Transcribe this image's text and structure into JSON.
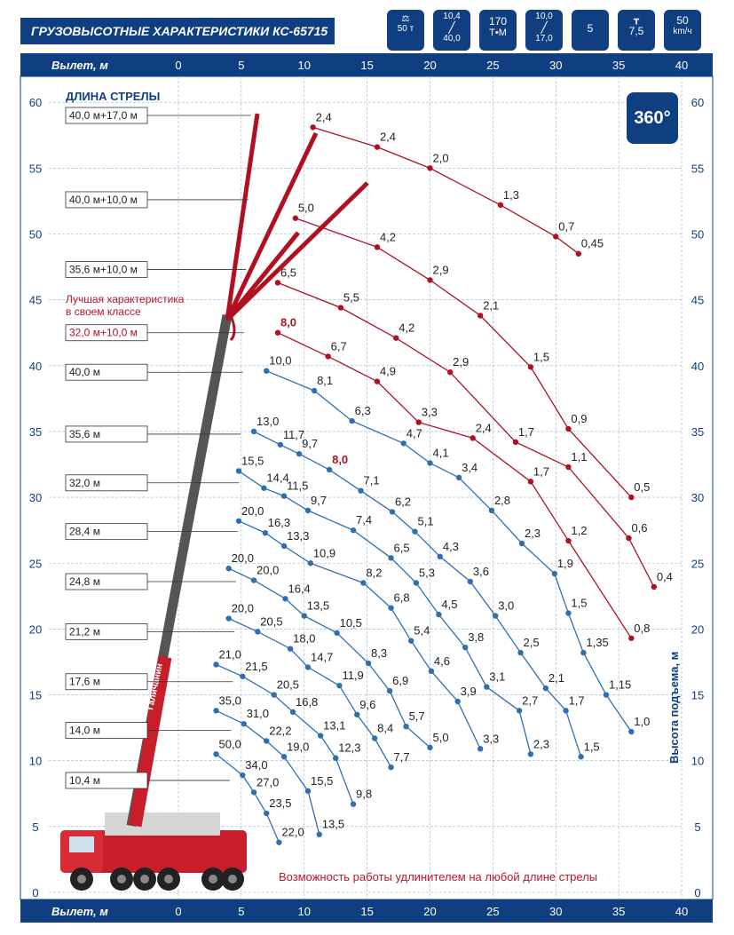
{
  "header": {
    "title": "ГРУЗОВЫСОТНЫЕ ХАРАКТЕРИСТИКИ КС-65715",
    "badges": [
      {
        "top": "",
        "bottom": "50 т",
        "icon": "weight-icon"
      },
      {
        "top": "10,4",
        "bottom": "40,0",
        "icon": "boom-icon"
      },
      {
        "top": "170",
        "bottom": "Т•М",
        "icon": "moment-icon"
      },
      {
        "top": "10,0",
        "bottom": "17,0",
        "icon": "jib-icon"
      },
      {
        "top": "",
        "bottom": "5",
        "icon": "sections-icon"
      },
      {
        "top": "",
        "bottom": "7,5",
        "icon": "outrigger-icon"
      },
      {
        "top": "50",
        "bottom": "km/ч",
        "icon": "speedometer-icon"
      }
    ]
  },
  "axis": {
    "top_label": "Вылет, м",
    "bottom_label": "Вылет, м",
    "y_label": "Высота подъема, м",
    "x_ticks": [
      "0",
      "5",
      "10",
      "15",
      "20",
      "25",
      "30",
      "35",
      "40"
    ],
    "y_ticks": [
      "0",
      "5",
      "10",
      "15",
      "20",
      "25",
      "30",
      "35",
      "40",
      "45",
      "50",
      "55",
      "60"
    ]
  },
  "boom": {
    "title": "ДЛИНА СТРЕЛЫ",
    "best_note": "Лучшая характеристика\nв своем классе",
    "rotation": "360°",
    "crane_brand": "Галичанин"
  },
  "footer_note": "Возможность работы удлинителем на любой длине стрелы",
  "colors": {
    "navy": "#0f3f80",
    "red": "#b01020",
    "blue_curve": "#2f6fb1",
    "grid": "#8fb4d9"
  },
  "chart_data": {
    "type": "line",
    "xlabel": "Вылет, м",
    "ylabel": "Высота подъема, м",
    "xlim": [
      0,
      40
    ],
    "ylim": [
      0,
      60
    ],
    "grid": true,
    "boom_length_labels": [
      {
        "label": "40,0 м+17,0 м",
        "y": 59,
        "highlight": false
      },
      {
        "label": "40,0 м+10,0 м",
        "y": 52.6,
        "highlight": false
      },
      {
        "label": "35,6 м+10,0 м",
        "y": 47.3,
        "highlight": false
      },
      {
        "label": "32,0 м+10,0 м",
        "y": 42.5,
        "highlight": true
      },
      {
        "label": "40,0 м",
        "y": 39.5,
        "highlight": false
      },
      {
        "label": "35,6 м",
        "y": 34.8,
        "highlight": false
      },
      {
        "label": "32,0 м",
        "y": 31.1,
        "highlight": false
      },
      {
        "label": "28,4 м",
        "y": 27.4,
        "highlight": false
      },
      {
        "label": "24,8 м",
        "y": 23.6,
        "highlight": false
      },
      {
        "label": "21,2 м",
        "y": 19.8,
        "highlight": false
      },
      {
        "label": "17,6 м",
        "y": 16.0,
        "highlight": false
      },
      {
        "label": "14,0 м",
        "y": 12.3,
        "highlight": false
      },
      {
        "label": "10,4 м",
        "y": 8.5,
        "highlight": false
      }
    ],
    "series": [
      {
        "name": "40,0 м+17,0 м",
        "color": "red",
        "points": [
          [
            10.7,
            58.1,
            "2,4"
          ],
          [
            15.8,
            56.6,
            "2,4"
          ],
          [
            20.0,
            55.0,
            "2,0"
          ],
          [
            25.6,
            52.2,
            "1,3"
          ],
          [
            30.0,
            49.8,
            "0,7"
          ],
          [
            31.8,
            48.5,
            "0,45"
          ]
        ]
      },
      {
        "name": "40,0 м+10,0 м",
        "color": "red",
        "points": [
          [
            9.3,
            51.2,
            "5,0"
          ],
          [
            15.8,
            49.0,
            "4,2"
          ],
          [
            20.0,
            46.5,
            "2,9"
          ],
          [
            24.0,
            43.8,
            "2,1"
          ],
          [
            28.0,
            39.9,
            "1,5"
          ],
          [
            31.0,
            35.2,
            "0,9"
          ],
          [
            36.0,
            30.0,
            "0,5"
          ]
        ]
      },
      {
        "name": "35,6 м+10,0 м",
        "color": "red",
        "points": [
          [
            7.9,
            46.3,
            "6,5"
          ],
          [
            12.9,
            44.4,
            "5,5"
          ],
          [
            17.3,
            42.1,
            "4,2"
          ],
          [
            21.6,
            39.5,
            "2,9"
          ],
          [
            26.8,
            34.2,
            "1,7"
          ],
          [
            31.0,
            32.3,
            "1,1"
          ],
          [
            35.8,
            26.9,
            "0,6"
          ],
          [
            37.8,
            23.2,
            "0,4"
          ]
        ]
      },
      {
        "name": "32,0 м+10,0 м",
        "color": "red",
        "points": [
          [
            7.9,
            42.5,
            "8,0"
          ],
          [
            11.9,
            40.7,
            "6,7"
          ],
          [
            15.8,
            38.8,
            "4,9"
          ],
          [
            19.1,
            35.7,
            "3,3"
          ],
          [
            23.4,
            34.5,
            "2,4"
          ],
          [
            28.0,
            31.2,
            "1,7"
          ],
          [
            31.0,
            26.7,
            "1,2"
          ],
          [
            36.0,
            19.3,
            "0,8"
          ]
        ]
      },
      {
        "name": "40,0 м",
        "color": "blue",
        "points": [
          [
            7.0,
            39.6,
            "10,0"
          ],
          [
            10.8,
            38.1,
            "8,1"
          ],
          [
            13.8,
            35.8,
            "6,3"
          ],
          [
            17.9,
            34.1,
            "4,7"
          ],
          [
            20.0,
            32.6,
            "4,1"
          ],
          [
            22.3,
            31.5,
            "3,4"
          ],
          [
            24.9,
            29.0,
            "2,8"
          ],
          [
            27.3,
            26.5,
            "2,3"
          ],
          [
            29.9,
            24.2,
            "1,9"
          ],
          [
            31.0,
            21.2,
            "1,5"
          ],
          [
            32.2,
            18.2,
            "1,35"
          ],
          [
            34.0,
            15.0,
            "1,15"
          ],
          [
            36.0,
            12.2,
            "1,0"
          ]
        ]
      },
      {
        "name": "35,6 м",
        "color": "blue",
        "points": [
          [
            6.0,
            35.0,
            "13,0"
          ],
          [
            8.1,
            34.0,
            "11,7"
          ],
          [
            9.6,
            33.3,
            "9,7"
          ],
          [
            12.0,
            32.1,
            "8,0"
          ],
          [
            14.5,
            30.5,
            "7,1"
          ],
          [
            17.0,
            28.9,
            "6,2"
          ],
          [
            18.8,
            27.4,
            "5,1"
          ],
          [
            20.8,
            25.5,
            "4,3"
          ],
          [
            23.2,
            23.6,
            "3,6"
          ],
          [
            25.2,
            21.0,
            "3,0"
          ],
          [
            27.2,
            18.2,
            "2,5"
          ],
          [
            29.2,
            15.5,
            "2,1"
          ],
          [
            30.8,
            13.8,
            "1,7"
          ],
          [
            32.0,
            10.3,
            "1,5"
          ]
        ]
      },
      {
        "name": "32,0 м",
        "color": "blue",
        "points": [
          [
            4.8,
            32.0,
            "15,5"
          ],
          [
            6.8,
            30.7,
            "14,4"
          ],
          [
            8.4,
            30.1,
            "11,5"
          ],
          [
            10.3,
            29.0,
            "9,7"
          ],
          [
            13.9,
            27.5,
            "7,4"
          ],
          [
            16.9,
            25.4,
            "6,5"
          ],
          [
            18.9,
            23.5,
            "5,3"
          ],
          [
            20.7,
            21.1,
            "4,5"
          ],
          [
            22.8,
            18.6,
            "3,8"
          ],
          [
            24.5,
            15.6,
            "3,1"
          ],
          [
            27.1,
            13.8,
            "2,7"
          ],
          [
            28.0,
            10.5,
            "2,3"
          ]
        ]
      },
      {
        "name": "28,4 м",
        "color": "blue",
        "points": [
          [
            4.8,
            28.2,
            "20,0"
          ],
          [
            6.9,
            27.3,
            "16,3"
          ],
          [
            8.4,
            26.3,
            "13,3"
          ],
          [
            10.5,
            25.0,
            "10,9"
          ],
          [
            14.7,
            23.5,
            "8,2"
          ],
          [
            16.9,
            21.6,
            "6,8"
          ],
          [
            18.5,
            19.1,
            "5,4"
          ],
          [
            20.1,
            16.8,
            "4,6"
          ],
          [
            22.2,
            14.5,
            "3,9"
          ],
          [
            24.0,
            10.9,
            "3,3"
          ]
        ]
      },
      {
        "name": "24,8 м",
        "color": "blue",
        "points": [
          [
            4.0,
            24.6,
            "20,0"
          ],
          [
            6.0,
            23.7,
            "20,0"
          ],
          [
            8.5,
            22.3,
            "16,4"
          ],
          [
            10.0,
            21.0,
            "13,5"
          ],
          [
            12.6,
            19.7,
            "10,5"
          ],
          [
            15.1,
            17.4,
            "8,3"
          ],
          [
            16.8,
            15.3,
            "6,9"
          ],
          [
            18.1,
            12.6,
            "5,7"
          ],
          [
            20.0,
            11.0,
            "5,0"
          ]
        ]
      },
      {
        "name": "21,2 м",
        "color": "blue",
        "points": [
          [
            4.0,
            20.8,
            "20,0"
          ],
          [
            6.3,
            19.8,
            "20,5"
          ],
          [
            8.9,
            18.5,
            "18,0"
          ],
          [
            10.3,
            17.1,
            "14,7"
          ],
          [
            12.8,
            15.7,
            "11,9"
          ],
          [
            14.2,
            13.5,
            "9,6"
          ],
          [
            15.6,
            11.7,
            "8,4"
          ],
          [
            16.9,
            9.5,
            "7,7"
          ]
        ]
      },
      {
        "name": "17,6 м",
        "color": "blue",
        "points": [
          [
            3.0,
            17.3,
            "21,0"
          ],
          [
            5.1,
            16.4,
            "21,5"
          ],
          [
            7.6,
            15.0,
            "20,5"
          ],
          [
            9.1,
            13.7,
            "16,8"
          ],
          [
            11.3,
            11.9,
            "13,1"
          ],
          [
            12.5,
            10.2,
            "12,3"
          ],
          [
            13.9,
            6.7,
            "9,8"
          ]
        ]
      },
      {
        "name": "14,0 м",
        "color": "blue",
        "points": [
          [
            3.0,
            13.8,
            "35,0"
          ],
          [
            5.2,
            12.8,
            "31,0"
          ],
          [
            7.0,
            11.5,
            "22,2"
          ],
          [
            8.4,
            10.3,
            "19,0"
          ],
          [
            10.3,
            7.7,
            "15,5"
          ],
          [
            11.2,
            4.4,
            "13,5"
          ]
        ]
      },
      {
        "name": "10,4 м",
        "color": "blue",
        "points": [
          [
            3.0,
            10.5,
            "50,0"
          ],
          [
            5.1,
            8.9,
            "34,0"
          ],
          [
            6.0,
            7.6,
            "27,0"
          ],
          [
            7.0,
            6.0,
            "23,5"
          ],
          [
            8.0,
            3.8,
            "22,0"
          ]
        ]
      }
    ]
  }
}
